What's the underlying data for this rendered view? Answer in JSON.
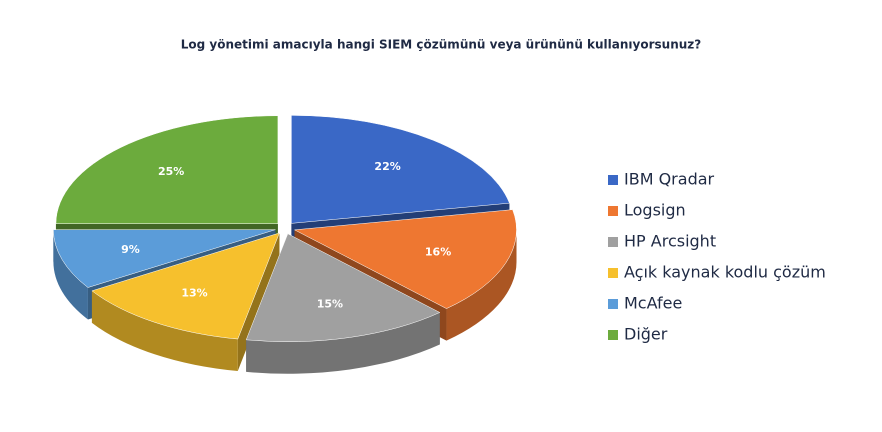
{
  "chart_data": {
    "type": "pie3d",
    "title": "Log yönetimi amacıyla hangi SIEM çözümünü veya ürününü kullanıyorsunuz?",
    "categories": [
      "IBM Qradar",
      "Logsign",
      "HP Arcsight",
      "Açık kaynak kodlu çözüm",
      "McAfee",
      "Diğer"
    ],
    "values": [
      22,
      16,
      15,
      13,
      9,
      25
    ],
    "value_labels": [
      "22%",
      "16%",
      "15%",
      "13%",
      "9%",
      "25%"
    ],
    "colors": [
      "#3a68c6",
      "#ee7731",
      "#a0a0a0",
      "#f6c02d",
      "#5b9cd9",
      "#6cab3d"
    ],
    "legend": "right"
  }
}
